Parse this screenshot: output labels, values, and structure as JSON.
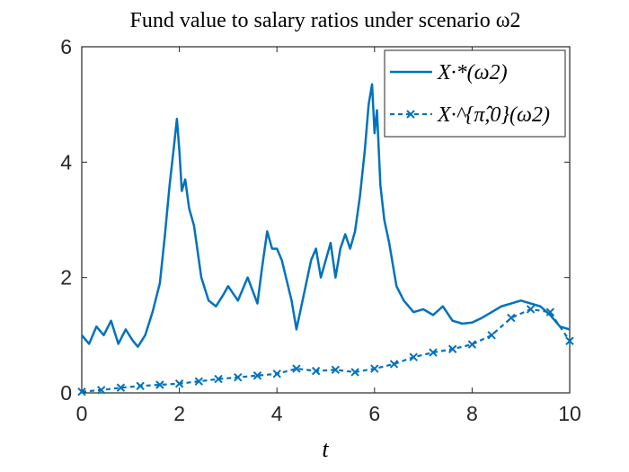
{
  "chart_data": {
    "type": "line",
    "title": "Fund value to salary ratios under scenario ω2",
    "xlabel": "t",
    "ylabel": "",
    "xlim": [
      0,
      10
    ],
    "ylim": [
      0,
      6
    ],
    "xticks": [
      "0",
      "2",
      "4",
      "6",
      "8",
      "10"
    ],
    "yticks": [
      "0",
      "2",
      "4",
      "6"
    ],
    "grid": false,
    "legend_position": "top-right",
    "colors": {
      "series": "#0072BD",
      "axis": "#262626"
    },
    "series": [
      {
        "name": "X·*(ω2)",
        "style": "solid",
        "x": [
          0,
          0.15,
          0.3,
          0.45,
          0.6,
          0.75,
          0.9,
          1.05,
          1.15,
          1.3,
          1.45,
          1.6,
          1.7,
          1.8,
          1.88,
          1.95,
          2.0,
          2.05,
          2.12,
          2.2,
          2.3,
          2.45,
          2.6,
          2.75,
          2.9,
          3.0,
          3.2,
          3.4,
          3.6,
          3.7,
          3.8,
          3.9,
          4.0,
          4.1,
          4.2,
          4.3,
          4.4,
          4.5,
          4.6,
          4.7,
          4.8,
          4.9,
          5.0,
          5.1,
          5.2,
          5.3,
          5.4,
          5.5,
          5.6,
          5.7,
          5.8,
          5.88,
          5.95,
          6.0,
          6.05,
          6.12,
          6.2,
          6.3,
          6.45,
          6.6,
          6.8,
          7.0,
          7.2,
          7.4,
          7.6,
          7.8,
          8.0,
          8.2,
          8.4,
          8.6,
          8.8,
          9.0,
          9.2,
          9.4,
          9.6,
          9.8,
          10.0
        ],
        "y": [
          1.0,
          0.85,
          1.15,
          1.0,
          1.25,
          0.85,
          1.1,
          0.9,
          0.8,
          1.0,
          1.4,
          1.9,
          2.7,
          3.6,
          4.2,
          4.75,
          4.2,
          3.5,
          3.7,
          3.2,
          2.9,
          2.0,
          1.6,
          1.5,
          1.7,
          1.85,
          1.6,
          2.0,
          1.55,
          2.2,
          2.8,
          2.5,
          2.5,
          2.3,
          1.95,
          1.6,
          1.1,
          1.5,
          1.9,
          2.3,
          2.5,
          2.0,
          2.3,
          2.6,
          2.0,
          2.5,
          2.75,
          2.5,
          2.8,
          3.4,
          4.2,
          5.0,
          5.35,
          4.5,
          4.9,
          3.6,
          3.0,
          2.6,
          1.85,
          1.6,
          1.4,
          1.45,
          1.35,
          1.5,
          1.25,
          1.2,
          1.22,
          1.3,
          1.4,
          1.5,
          1.55,
          1.6,
          1.55,
          1.5,
          1.35,
          1.15,
          1.1
        ]
      },
      {
        "name": "X·^{π̂,0}(ω2)",
        "style": "dashed-x",
        "x": [
          0,
          0.4,
          0.8,
          1.2,
          1.6,
          2.0,
          2.4,
          2.8,
          3.2,
          3.6,
          4.0,
          4.4,
          4.8,
          5.2,
          5.6,
          6.0,
          6.4,
          6.8,
          7.2,
          7.6,
          8.0,
          8.4,
          8.8,
          9.2,
          9.6,
          10.0
        ],
        "y": [
          0.02,
          0.05,
          0.09,
          0.12,
          0.14,
          0.16,
          0.2,
          0.24,
          0.27,
          0.3,
          0.33,
          0.42,
          0.38,
          0.4,
          0.36,
          0.42,
          0.5,
          0.62,
          0.7,
          0.76,
          0.84,
          1.0,
          1.3,
          1.45,
          1.4,
          0.9
        ]
      }
    ]
  }
}
